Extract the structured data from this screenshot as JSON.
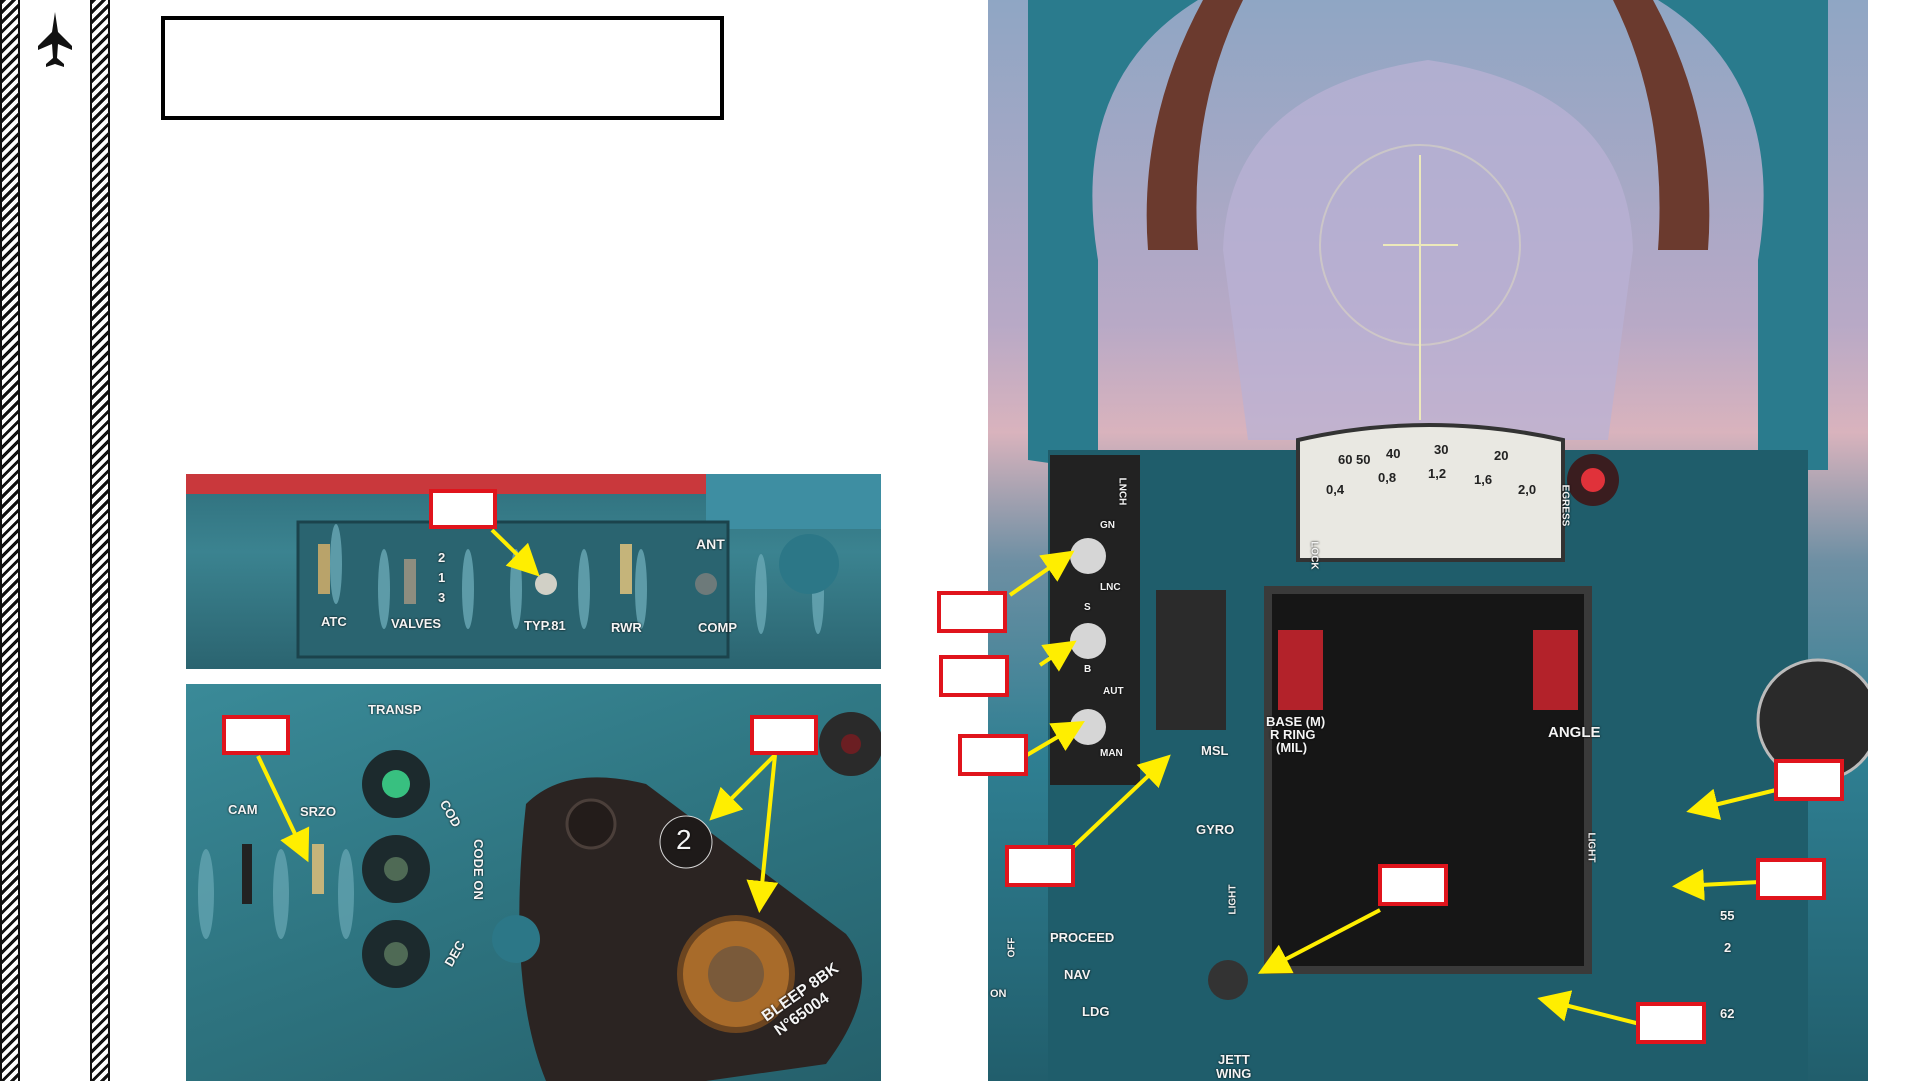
{
  "colors": {
    "accent": "#e0141c",
    "arrow": "#ffee00",
    "frame": "#111111"
  },
  "icons": {
    "logo": "jet-silhouette-icon"
  },
  "top_panel": {
    "labels": {
      "atc": "ATC",
      "valves": "VALVES",
      "pos2": "2",
      "pos1": "1",
      "pos3": "3",
      "typ81": "TYP.81",
      "rwr": "RWR",
      "ant": "ANT",
      "comp": "COMP"
    }
  },
  "bottom_panel": {
    "labels": {
      "transp": "TRANSP",
      "cam": "CAM",
      "srzo": "SRZO",
      "cod": "COD",
      "code_on": "CODE ON",
      "dec": "DEC",
      "dial": "2",
      "plate1": "BLEEP 8BK",
      "plate2": "N°65004"
    }
  },
  "cockpit": {
    "labels": {
      "lnch": "LNCH",
      "gn": "GN",
      "lnc": "LNC",
      "s": "S",
      "b": "B",
      "aut": "AUT",
      "man": "MAN",
      "msl": "MSL",
      "gyro": "GYRO",
      "base": "BASE (M)",
      "ring": "R RING",
      "mil": "(MIL)",
      "angle": "ANGLE",
      "proceed": "PROCEED",
      "nav": "NAV",
      "ldg": "LDG",
      "jett": "JETT",
      "wing": "WING",
      "lock": "LOCK",
      "egress": "EGRESS",
      "light_left": "LIGHT",
      "light_right": "LIGHT",
      "off": "OFF",
      "on": "ON",
      "scale1": "60",
      "scale2": "50",
      "scale3": "40",
      "scale4": "30",
      "scale5": "20",
      "scale6": "0,4",
      "scale7": "0,8",
      "scale8": "1,2",
      "scale9": "1,6",
      "scale10": "2,0",
      "g1": "55",
      "g2": "2",
      "g3": "62"
    }
  }
}
